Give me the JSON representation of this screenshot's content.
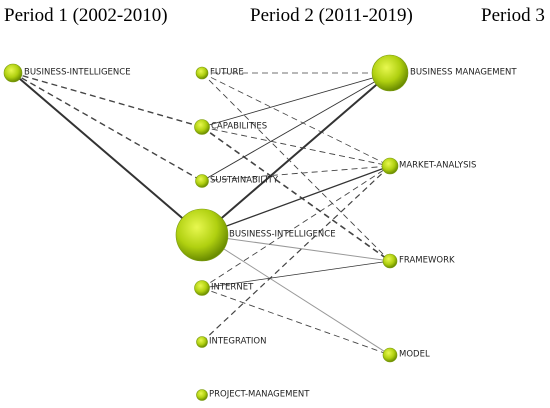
{
  "headers": [
    "Period 1 (2002-2010)",
    "Period 2 (2011-2019)",
    "Period 3"
  ],
  "period1": {
    "nodes": [
      "BUSINESS-INTELLIGENCE"
    ]
  },
  "period2": {
    "nodes": [
      "FUTURE",
      "CAPABILITIES",
      "SUSTAINABILITY",
      "BUSINESS-INTELLIGENCE",
      "INTERNET",
      "INTEGRATION",
      "PROJECT-MANAGEMENT"
    ]
  },
  "period3": {
    "nodes": [
      "BUSINESS MANAGEMENT",
      "MARKET-ANALYSIS",
      "FRAMEWORK",
      "MODEL"
    ]
  }
}
